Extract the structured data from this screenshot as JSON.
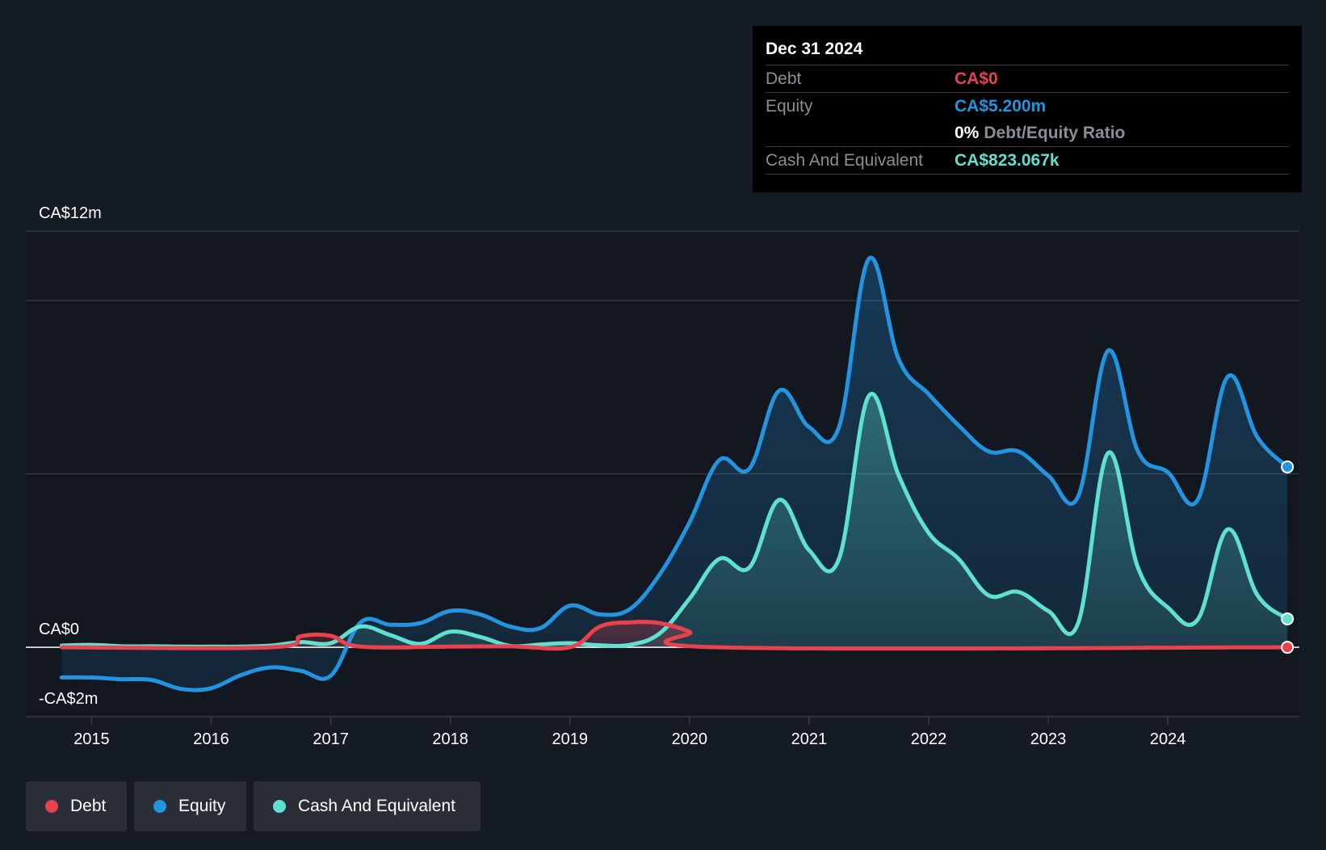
{
  "colors": {
    "debt": "#e8424f",
    "equity": "#2394e0",
    "cash": "#5fe0d0",
    "background": "#151b24",
    "grid": "#3a4049"
  },
  "tooltip": {
    "date": "Dec 31 2024",
    "debt_label": "Debt",
    "debt_value": "CA$0",
    "equity_label": "Equity",
    "equity_value": "CA$5.200m",
    "ratio_value": "0%",
    "ratio_label": "Debt/Equity Ratio",
    "cash_label": "Cash And Equivalent",
    "cash_value": "CA$823.067k"
  },
  "legend": [
    {
      "label": "Debt",
      "color": "#e8424f"
    },
    {
      "label": "Equity",
      "color": "#2394e0"
    },
    {
      "label": "Cash And Equivalent",
      "color": "#5fe0d0"
    }
  ],
  "chart_data": {
    "type": "area",
    "title": "",
    "xlabel": "",
    "ylabel": "",
    "xlim": [
      2014.45,
      2025.1
    ],
    "ylim": [
      -2,
      12
    ],
    "y_tick_labels": [
      {
        "value": 12,
        "label": "CA$12m"
      },
      {
        "value": 0,
        "label": "CA$0"
      },
      {
        "value": -2,
        "label": "-CA$2m"
      }
    ],
    "gridlines": [
      12,
      10,
      5,
      -2
    ],
    "x_ticks": [
      2015,
      2016,
      2017,
      2018,
      2019,
      2020,
      2021,
      2022,
      2023,
      2024
    ],
    "x_tick_labels": [
      "2015",
      "2016",
      "2017",
      "2018",
      "2019",
      "2020",
      "2021",
      "2022",
      "2023",
      "2024"
    ],
    "series": [
      {
        "name": "Equity",
        "points": [
          [
            2014.75,
            -0.87
          ],
          [
            2015.0,
            -0.87
          ],
          [
            2015.25,
            -0.92
          ],
          [
            2015.5,
            -0.94
          ],
          [
            2015.75,
            -1.2
          ],
          [
            2016.0,
            -1.18
          ],
          [
            2016.25,
            -0.8
          ],
          [
            2016.5,
            -0.58
          ],
          [
            2016.75,
            -0.68
          ],
          [
            2017.0,
            -0.82
          ],
          [
            2017.25,
            0.72
          ],
          [
            2017.5,
            0.65
          ],
          [
            2017.75,
            0.7
          ],
          [
            2018.0,
            1.05
          ],
          [
            2018.25,
            0.95
          ],
          [
            2018.5,
            0.6
          ],
          [
            2018.75,
            0.55
          ],
          [
            2019.0,
            1.2
          ],
          [
            2019.25,
            0.95
          ],
          [
            2019.5,
            1.1
          ],
          [
            2019.75,
            2.1
          ],
          [
            2020.0,
            3.6
          ],
          [
            2020.25,
            5.4
          ],
          [
            2020.5,
            5.15
          ],
          [
            2020.75,
            7.4
          ],
          [
            2021.0,
            6.35
          ],
          [
            2021.25,
            6.35
          ],
          [
            2021.5,
            11.2
          ],
          [
            2021.75,
            8.3
          ],
          [
            2022.0,
            7.3
          ],
          [
            2022.25,
            6.4
          ],
          [
            2022.5,
            5.65
          ],
          [
            2022.75,
            5.65
          ],
          [
            2023.0,
            4.95
          ],
          [
            2023.25,
            4.35
          ],
          [
            2023.5,
            8.55
          ],
          [
            2023.75,
            5.65
          ],
          [
            2024.0,
            5.05
          ],
          [
            2024.25,
            4.25
          ],
          [
            2024.5,
            7.8
          ],
          [
            2024.75,
            6.05
          ],
          [
            2025.0,
            5.2
          ]
        ]
      },
      {
        "name": "Cash And Equivalent",
        "points": [
          [
            2014.75,
            0.05
          ],
          [
            2015.0,
            0.07
          ],
          [
            2015.25,
            0.03
          ],
          [
            2015.5,
            0.03
          ],
          [
            2015.75,
            0.02
          ],
          [
            2016.0,
            0.02
          ],
          [
            2016.25,
            0.02
          ],
          [
            2016.5,
            0.05
          ],
          [
            2016.75,
            0.15
          ],
          [
            2017.0,
            0.12
          ],
          [
            2017.25,
            0.6
          ],
          [
            2017.5,
            0.35
          ],
          [
            2017.75,
            0.1
          ],
          [
            2018.0,
            0.45
          ],
          [
            2018.25,
            0.3
          ],
          [
            2018.5,
            0.04
          ],
          [
            2018.75,
            0.08
          ],
          [
            2019.0,
            0.12
          ],
          [
            2019.25,
            0.06
          ],
          [
            2019.5,
            0.07
          ],
          [
            2019.75,
            0.4
          ],
          [
            2020.0,
            1.4
          ],
          [
            2020.25,
            2.55
          ],
          [
            2020.5,
            2.3
          ],
          [
            2020.75,
            4.25
          ],
          [
            2021.0,
            2.8
          ],
          [
            2021.25,
            2.55
          ],
          [
            2021.5,
            7.25
          ],
          [
            2021.75,
            4.95
          ],
          [
            2022.0,
            3.3
          ],
          [
            2022.25,
            2.55
          ],
          [
            2022.5,
            1.5
          ],
          [
            2022.75,
            1.6
          ],
          [
            2023.0,
            1.05
          ],
          [
            2023.25,
            0.7
          ],
          [
            2023.5,
            5.6
          ],
          [
            2023.75,
            2.3
          ],
          [
            2024.0,
            1.15
          ],
          [
            2024.25,
            0.8
          ],
          [
            2024.5,
            3.4
          ],
          [
            2024.75,
            1.5
          ],
          [
            2025.0,
            0.82
          ]
        ]
      },
      {
        "name": "Debt",
        "points": [
          [
            2014.75,
            0.0
          ],
          [
            2016.5,
            0.0
          ],
          [
            2016.75,
            0.32
          ],
          [
            2017.0,
            0.33
          ],
          [
            2017.25,
            0.02
          ],
          [
            2018.0,
            0.02
          ],
          [
            2018.5,
            0.03
          ],
          [
            2019.0,
            0.0
          ],
          [
            2019.25,
            0.6
          ],
          [
            2019.5,
            0.72
          ],
          [
            2019.75,
            0.7
          ],
          [
            2020.0,
            0.45
          ],
          [
            2020.25,
            0.0
          ],
          [
            2025.0,
            0.0
          ]
        ]
      }
    ]
  }
}
